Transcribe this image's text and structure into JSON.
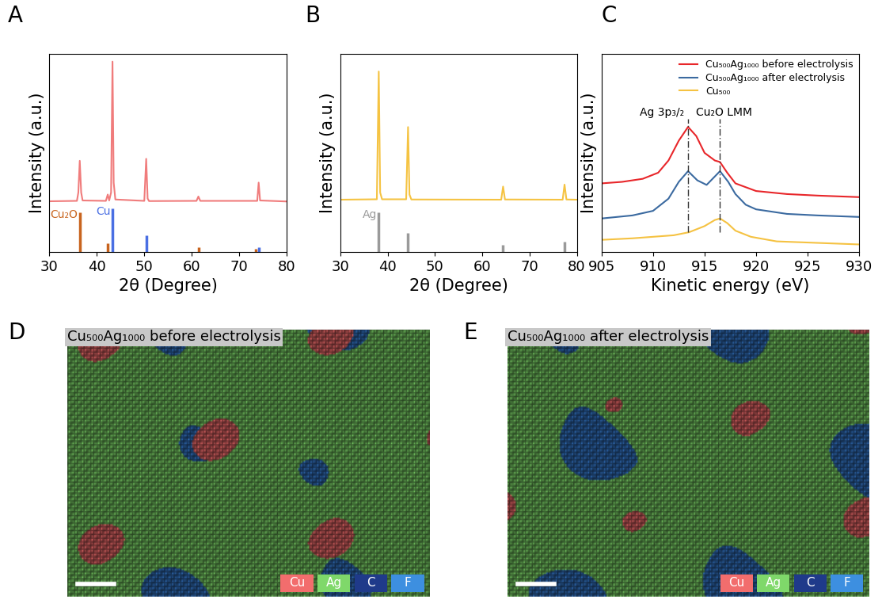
{
  "chart_data": [
    {
      "type": "line",
      "panel": "A",
      "x_label": "2θ (Degree)",
      "y_label": "Intensity (a.u.)",
      "xlim": [
        30,
        80
      ],
      "xticks": [
        30,
        40,
        50,
        60,
        70,
        80
      ],
      "ylim": [
        0,
        100
      ],
      "yticks": [],
      "tick_labels": "x",
      "series": [
        {
          "name": null,
          "type": "line",
          "color": "#f07c7c",
          "x": [
            30,
            35.8,
            36.1,
            36.4,
            36.7,
            37,
            41.9,
            42.3,
            42.6,
            43.0,
            43.3,
            43.55,
            43.9,
            50,
            50.4,
            50.7,
            51,
            61,
            61.4,
            61.8,
            73.8,
            74.1,
            74.4,
            80
          ],
          "values": [
            25.6,
            25.8,
            30,
            46,
            30,
            26,
            25.8,
            29,
            26,
            30,
            96,
            35,
            26.5,
            25.8,
            47,
            27,
            25.7,
            25.8,
            28,
            25.8,
            25.8,
            35,
            26,
            25.5
          ]
        },
        {
          "name": "Cu₂O",
          "type": "stem",
          "color": "#c8641e",
          "x": [
            36.4,
            42.3,
            61.4,
            73.5
          ],
          "values": [
            20,
            4.4,
            2.5,
            1.8
          ]
        },
        {
          "name": "Cu",
          "type": "stem",
          "color": "#4a6fe3",
          "x": [
            43.3,
            50.4,
            74.1
          ],
          "values": [
            22,
            8.4,
            2.5
          ]
        }
      ]
    },
    {
      "type": "line",
      "panel": "B",
      "x_label": "2θ (Degree)",
      "y_label": "Intensity (a.u.)",
      "xlim": [
        30,
        80
      ],
      "xticks": [
        30,
        40,
        50,
        60,
        70,
        80
      ],
      "ylim": [
        0,
        100
      ],
      "yticks": [],
      "tick_labels": "x",
      "series": [
        {
          "name": null,
          "type": "line",
          "color": "#f5c342",
          "x": [
            30,
            37.7,
            38.1,
            38.4,
            38.8,
            43.9,
            44.3,
            44.6,
            45,
            64,
            64.4,
            64.8,
            77,
            77.4,
            77.8,
            80
          ],
          "values": [
            26.4,
            26.6,
            91,
            30,
            26.6,
            26.6,
            63,
            29,
            26.5,
            26.4,
            33,
            26.5,
            26.4,
            34,
            26.5,
            26.4
          ]
        },
        {
          "name": "Ag",
          "type": "stem",
          "color": "#9a9a9a",
          "x": [
            38.1,
            44.3,
            64.4,
            77.4
          ],
          "values": [
            20,
            9.6,
            3.6,
            5.2
          ]
        }
      ]
    },
    {
      "type": "line",
      "panel": "C",
      "x_label": "Kinetic energy (eV)",
      "y_label": "Intensity (a.u.)",
      "xlim": [
        905,
        930
      ],
      "xticks": [
        905,
        910,
        915,
        920,
        925,
        930
      ],
      "ylim": [
        0,
        130
      ],
      "yticks": [],
      "tick_labels": "x",
      "legend": "upper right",
      "annotations": [
        {
          "x": 913.4,
          "text": "Ag 3p₃/₂"
        },
        {
          "x": 916.5,
          "text": "Cu₂O LMM"
        }
      ],
      "series": [
        {
          "name": "Cu₅₀₀Ag₁₀₀₀ before electrolysis",
          "type": "line",
          "color": "#e8262a",
          "x": [
            905,
            907,
            909,
            910.5,
            911.5,
            912.5,
            913.4,
            914.2,
            915,
            916,
            916.5,
            917.2,
            918,
            920,
            923,
            926,
            930
          ],
          "values": [
            45,
            46,
            48,
            52,
            60,
            73,
            82,
            76,
            65,
            60,
            59,
            52,
            45,
            40,
            38,
            37,
            36
          ]
        },
        {
          "name": "Cu₅₀₀Ag₁₀₀₀ after electrolysis",
          "type": "line",
          "color": "#3b6aa0",
          "x": [
            905,
            908,
            910,
            911.5,
            912.5,
            913.4,
            914.3,
            915.2,
            916.5,
            917.3,
            918,
            919,
            920,
            923,
            926,
            930
          ],
          "values": [
            22,
            24,
            27,
            35,
            46,
            53,
            47,
            44,
            53,
            46,
            38,
            31,
            28,
            25,
            24,
            23
          ]
        },
        {
          "name": "Cu₅₀₀",
          "type": "line",
          "color": "#f5c242",
          "x": [
            905,
            908,
            910,
            912,
            913.5,
            915,
            916,
            916.5,
            917.2,
            918,
            919.5,
            922,
            926,
            930
          ],
          "values": [
            8,
            9,
            10,
            11,
            13,
            17,
            21,
            22,
            19,
            14,
            10,
            7,
            6,
            5
          ]
        }
      ]
    },
    {
      "type": "image",
      "panel": "D",
      "title": "Cu₅₀₀Ag₁₀₀₀ before electrolysis",
      "categories": [
        "Cu",
        "Ag",
        "C",
        "F"
      ],
      "colors": [
        "#f26d6d",
        "#7fd86a",
        "#1f3a8a",
        "#3d8fe0"
      ]
    },
    {
      "type": "image",
      "panel": "E",
      "title": "Cu₅₀₀Ag₁₀₀₀ after electrolysis",
      "categories": [
        "Cu",
        "Ag",
        "C",
        "F"
      ],
      "colors": [
        "#f26d6d",
        "#7fd86a",
        "#1f3a8a",
        "#3d8fe0"
      ]
    }
  ]
}
